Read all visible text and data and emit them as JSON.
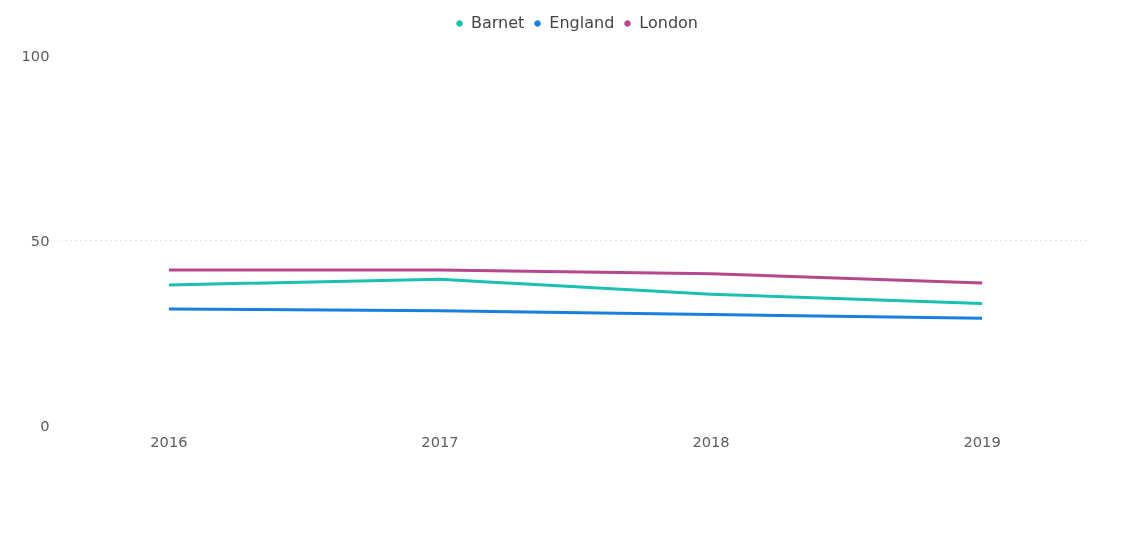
{
  "chart_data": {
    "type": "line",
    "categories": [
      "2016",
      "2017",
      "2018",
      "2019"
    ],
    "series": [
      {
        "name": "Barnet",
        "color": "#1ac1b0",
        "values": [
          38,
          39.5,
          35.5,
          33
        ]
      },
      {
        "name": "England",
        "color": "#1a7ee0",
        "values": [
          31.5,
          31,
          30,
          29
        ]
      },
      {
        "name": "London",
        "color": "#b6468e",
        "values": [
          42,
          42,
          41,
          38.5
        ]
      }
    ],
    "ylim": [
      0,
      100
    ],
    "yticks": [
      0,
      50,
      100
    ],
    "grid": "y",
    "legend": "top",
    "marker": "none",
    "line_style": "solid"
  }
}
